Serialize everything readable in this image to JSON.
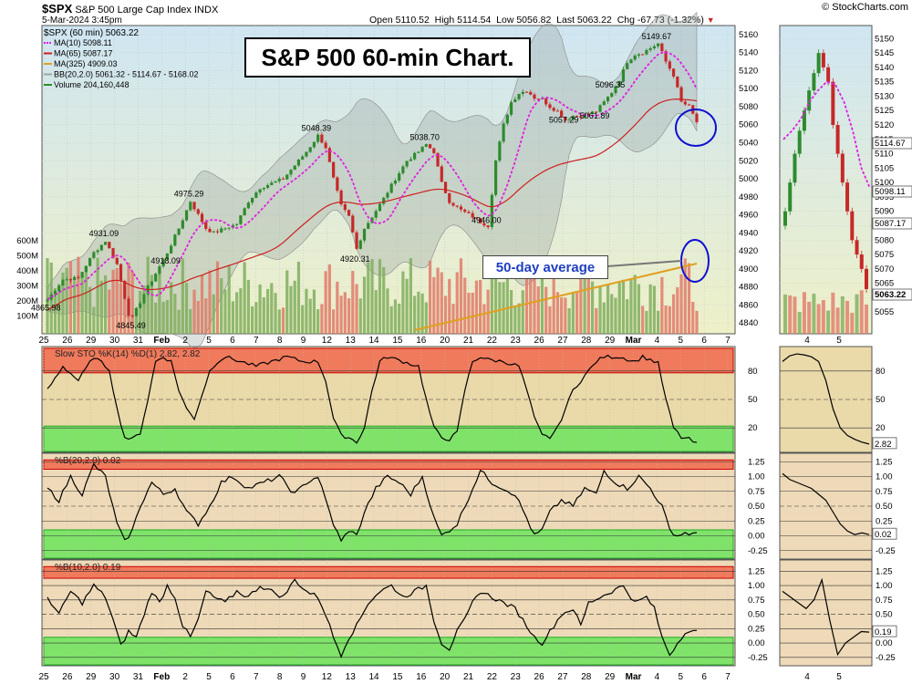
{
  "header": {
    "symbol": "$SPX",
    "name": "S&P 500 Large Cap Index",
    "exchange": "INDX",
    "date": "5-Mar-2024 3:45pm",
    "open": "Open 5110.52",
    "high": "High 5114.54",
    "low": "Low 5056.82",
    "last": "Last 5063.22",
    "chg": "Chg -67.73 (-1.32%)",
    "chg_arrow": "▼",
    "credit": "© StockCharts.com"
  },
  "annotations": {
    "title": "S&P 500 60-min Chart.",
    "ma_label": "50-day average"
  },
  "colors": {
    "bg_top": "#cfe6f2",
    "bg_bottom": "#eef0c8",
    "up_candle": "#2e8b2e",
    "down_candle": "#c62828",
    "ma10": "#e020e0",
    "ma65": "#cc2020",
    "ma325": "#e0a020",
    "band": "#9aa7a4",
    "stoch_panel": "#ead9a9",
    "pctb_panel": "#eedab8",
    "overbought": "#f07a5c",
    "oversold": "#7fe36a",
    "circle": "#1010d0"
  },
  "chart_data": [
    {
      "type": "line",
      "panel": "price",
      "title": "$SPX (60 min) 5063.22",
      "legend": [
        {
          "label": "MA(10) 5098.11",
          "color": "#e020e0"
        },
        {
          "label": "MA(65) 5087.17",
          "color": "#cc2020"
        },
        {
          "label": "MA(325) 4909.03",
          "color": "#e0a020"
        },
        {
          "label": "BB(20,2.0) 5061.32 - 5114.67 - 5168.02",
          "color": "#9aa7a4"
        },
        {
          "label": "Volume 204,160,448",
          "color": "#2e8b2e"
        }
      ],
      "ylim": [
        4832,
        5166
      ],
      "yticks": [
        4840,
        4860,
        4880,
        4900,
        4920,
        4940,
        4960,
        4980,
        5000,
        5020,
        5040,
        5060,
        5080,
        5100,
        5120,
        5140,
        5160
      ],
      "volume_ticks": [
        "600M",
        "500M",
        "400M",
        "300M",
        "200M",
        "100M"
      ],
      "x_labels": [
        "25",
        "26",
        "29",
        "30",
        "31",
        "Feb",
        "2",
        "5",
        "6",
        "7",
        "8",
        "9",
        "12",
        "13",
        "14",
        "15",
        "16",
        "20",
        "21",
        "22",
        "23",
        "26",
        "27",
        "28",
        "29",
        "Mar",
        "4",
        "5",
        "6",
        "7"
      ],
      "price_anchors": [
        [
          0,
          4866
        ],
        [
          4,
          4888
        ],
        [
          8,
          4890
        ],
        [
          12,
          4918
        ],
        [
          15,
          4931
        ],
        [
          18,
          4905
        ],
        [
          21,
          4850
        ],
        [
          22,
          4846
        ],
        [
          25,
          4872
        ],
        [
          28,
          4895
        ],
        [
          31,
          4918
        ],
        [
          34,
          4945
        ],
        [
          37,
          4975
        ],
        [
          39,
          4960
        ],
        [
          41,
          4945
        ],
        [
          43,
          4940
        ],
        [
          46,
          4945
        ],
        [
          49,
          4950
        ],
        [
          52,
          4975
        ],
        [
          55,
          4990
        ],
        [
          58,
          4995
        ],
        [
          61,
          5000
        ],
        [
          64,
          5015
        ],
        [
          67,
          5030
        ],
        [
          70,
          5048
        ],
        [
          72,
          5035
        ],
        [
          74,
          5000
        ],
        [
          76,
          4970
        ],
        [
          78,
          4958
        ],
        [
          80,
          4922
        ],
        [
          82,
          4945
        ],
        [
          84,
          4958
        ],
        [
          87,
          4978
        ],
        [
          90,
          5000
        ],
        [
          93,
          5020
        ],
        [
          96,
          5030
        ],
        [
          98,
          5038
        ],
        [
          100,
          5030
        ],
        [
          102,
          4995
        ],
        [
          104,
          4975
        ],
        [
          107,
          4965
        ],
        [
          110,
          4958
        ],
        [
          112,
          4952
        ],
        [
          114,
          4948
        ],
        [
          116,
          5020
        ],
        [
          118,
          5060
        ],
        [
          120,
          5085
        ],
        [
          122,
          5095
        ],
        [
          124,
          5098
        ],
        [
          126,
          5090
        ],
        [
          128,
          5088
        ],
        [
          130,
          5080
        ],
        [
          132,
          5075
        ],
        [
          134,
          5065
        ],
        [
          136,
          5070
        ],
        [
          138,
          5070
        ],
        [
          140,
          5072
        ],
        [
          142,
          5075
        ],
        [
          144,
          5085
        ],
        [
          146,
          5096
        ],
        [
          148,
          5110
        ],
        [
          150,
          5130
        ],
        [
          152,
          5138
        ],
        [
          154,
          5140
        ],
        [
          156,
          5145
        ],
        [
          158,
          5150
        ],
        [
          160,
          5130
        ],
        [
          162,
          5115
        ],
        [
          164,
          5085
        ],
        [
          166,
          5080
        ],
        [
          168,
          5063
        ]
      ],
      "price_labels": [
        {
          "text": "4931.09",
          "i": 15,
          "v": 4931
        },
        {
          "text": "4865.98",
          "i": 0,
          "v": 4866
        },
        {
          "text": "4845.49",
          "i": 22,
          "v": 4846
        },
        {
          "text": "4918.09",
          "i": 31,
          "v": 4918
        },
        {
          "text": "4975.29",
          "i": 37,
          "v": 4975
        },
        {
          "text": "5048.39",
          "i": 70,
          "v": 5048
        },
        {
          "text": "4920.31",
          "i": 80,
          "v": 4920
        },
        {
          "text": "5038.70",
          "i": 98,
          "v": 5038
        },
        {
          "text": "4946.00",
          "i": 114,
          "v": 4946
        },
        {
          "text": "5096.35",
          "i": 146,
          "v": 5096
        },
        {
          "text": "5057.29",
          "i": 134,
          "v": 5057
        },
        {
          "text": "5061.89",
          "i": 142,
          "v": 5062
        },
        {
          "text": "5149.67",
          "i": 158,
          "v": 5150
        }
      ]
    },
    {
      "type": "line",
      "panel": "zoom-price",
      "ylim": [
        5050,
        5152
      ],
      "yticks": [
        5055,
        5060,
        5065,
        5070,
        5075,
        5080,
        5085,
        5090,
        5095,
        5100,
        5105,
        5110,
        5115,
        5120,
        5125,
        5130,
        5135,
        5140,
        5145,
        5150
      ],
      "x_labels": [
        "4",
        "5"
      ],
      "value_labels": [
        "5114.67",
        "5098.11",
        "5087.17",
        "5063.22"
      ]
    },
    {
      "type": "line",
      "panel": "stochastic",
      "title": "Slow STO %K(14) %D(1) 2.82, 2.82",
      "ylim": [
        0,
        100
      ],
      "yticks": [
        "80",
        "50",
        "20"
      ],
      "last_label": "2.82",
      "anchors": [
        [
          0,
          60
        ],
        [
          4,
          85
        ],
        [
          8,
          70
        ],
        [
          12,
          95
        ],
        [
          16,
          82
        ],
        [
          18,
          40
        ],
        [
          20,
          10
        ],
        [
          22,
          8
        ],
        [
          24,
          15
        ],
        [
          26,
          50
        ],
        [
          28,
          90
        ],
        [
          30,
          95
        ],
        [
          32,
          90
        ],
        [
          34,
          60
        ],
        [
          36,
          40
        ],
        [
          38,
          30
        ],
        [
          40,
          55
        ],
        [
          42,
          80
        ],
        [
          44,
          90
        ],
        [
          46,
          95
        ],
        [
          50,
          90
        ],
        [
          54,
          85
        ],
        [
          58,
          90
        ],
        [
          62,
          95
        ],
        [
          66,
          90
        ],
        [
          70,
          90
        ],
        [
          72,
          70
        ],
        [
          74,
          30
        ],
        [
          76,
          12
        ],
        [
          78,
          10
        ],
        [
          80,
          5
        ],
        [
          82,
          20
        ],
        [
          84,
          60
        ],
        [
          86,
          90
        ],
        [
          88,
          95
        ],
        [
          92,
          90
        ],
        [
          96,
          85
        ],
        [
          98,
          50
        ],
        [
          100,
          20
        ],
        [
          102,
          10
        ],
        [
          104,
          8
        ],
        [
          106,
          15
        ],
        [
          108,
          60
        ],
        [
          110,
          90
        ],
        [
          112,
          95
        ],
        [
          114,
          92
        ],
        [
          118,
          90
        ],
        [
          122,
          85
        ],
        [
          124,
          60
        ],
        [
          126,
          30
        ],
        [
          128,
          12
        ],
        [
          130,
          10
        ],
        [
          132,
          20
        ],
        [
          134,
          40
        ],
        [
          136,
          60
        ],
        [
          138,
          70
        ],
        [
          140,
          80
        ],
        [
          142,
          90
        ],
        [
          144,
          95
        ],
        [
          148,
          95
        ],
        [
          152,
          90
        ],
        [
          154,
          95
        ],
        [
          156,
          92
        ],
        [
          158,
          88
        ],
        [
          160,
          50
        ],
        [
          162,
          20
        ],
        [
          164,
          10
        ],
        [
          166,
          8
        ],
        [
          168,
          3
        ]
      ]
    },
    {
      "type": "line",
      "panel": "percent-b-20",
      "title": "%B(20,2.0) 0.02",
      "ylim": [
        -0.3,
        1.3
      ],
      "yticks": [
        "1.25",
        "1.00",
        "0.75",
        "0.50",
        "0.25",
        "0.00",
        "-0.25"
      ],
      "last_label": "0.02",
      "anchors": [
        [
          0,
          0.8
        ],
        [
          3,
          0.6
        ],
        [
          6,
          1.0
        ],
        [
          9,
          0.7
        ],
        [
          12,
          1.2
        ],
        [
          15,
          1.0
        ],
        [
          18,
          0.2
        ],
        [
          20,
          -0.1
        ],
        [
          22,
          0.1
        ],
        [
          24,
          0.5
        ],
        [
          27,
          0.9
        ],
        [
          30,
          0.7
        ],
        [
          33,
          0.8
        ],
        [
          36,
          0.4
        ],
        [
          39,
          0.2
        ],
        [
          42,
          0.5
        ],
        [
          45,
          0.9
        ],
        [
          48,
          1.0
        ],
        [
          52,
          0.8
        ],
        [
          56,
          0.9
        ],
        [
          60,
          1.0
        ],
        [
          64,
          0.7
        ],
        [
          67,
          0.9
        ],
        [
          70,
          1.0
        ],
        [
          72,
          0.6
        ],
        [
          74,
          0.2
        ],
        [
          76,
          -0.1
        ],
        [
          78,
          0.1
        ],
        [
          80,
          0.0
        ],
        [
          82,
          0.4
        ],
        [
          85,
          0.8
        ],
        [
          88,
          1.0
        ],
        [
          91,
          0.9
        ],
        [
          94,
          0.7
        ],
        [
          97,
          1.0
        ],
        [
          100,
          0.3
        ],
        [
          102,
          0.0
        ],
        [
          104,
          0.1
        ],
        [
          106,
          0.2
        ],
        [
          108,
          0.5
        ],
        [
          110,
          0.8
        ],
        [
          112,
          1.1
        ],
        [
          115,
          0.9
        ],
        [
          118,
          0.8
        ],
        [
          121,
          0.7
        ],
        [
          124,
          0.3
        ],
        [
          126,
          0.0
        ],
        [
          128,
          0.1
        ],
        [
          130,
          0.4
        ],
        [
          133,
          0.6
        ],
        [
          136,
          0.5
        ],
        [
          139,
          0.8
        ],
        [
          142,
          0.7
        ],
        [
          144,
          1.1
        ],
        [
          147,
          0.9
        ],
        [
          150,
          0.8
        ],
        [
          153,
          1.0
        ],
        [
          156,
          0.8
        ],
        [
          159,
          0.5
        ],
        [
          161,
          0.1
        ],
        [
          163,
          0.0
        ],
        [
          165,
          0.05
        ],
        [
          168,
          0.02
        ]
      ]
    },
    {
      "type": "line",
      "panel": "percent-b-10",
      "title": "%B(10,2.0) 0.19",
      "ylim": [
        -0.3,
        1.35
      ],
      "yticks": [
        "1.25",
        "1.00",
        "0.75",
        "0.50",
        "0.25",
        "0.00",
        "-0.25"
      ],
      "last_label": "0.19",
      "anchors": [
        [
          0,
          0.8
        ],
        [
          3,
          0.5
        ],
        [
          6,
          0.9
        ],
        [
          9,
          0.7
        ],
        [
          12,
          1.0
        ],
        [
          15,
          0.8
        ],
        [
          17,
          0.4
        ],
        [
          19,
          -0.05
        ],
        [
          21,
          0.2
        ],
        [
          23,
          0.1
        ],
        [
          25,
          0.5
        ],
        [
          27,
          0.9
        ],
        [
          29,
          0.7
        ],
        [
          31,
          1.0
        ],
        [
          33,
          0.8
        ],
        [
          35,
          0.3
        ],
        [
          37,
          0.1
        ],
        [
          39,
          0.4
        ],
        [
          41,
          0.9
        ],
        [
          43,
          0.8
        ],
        [
          46,
          0.7
        ],
        [
          49,
          0.9
        ],
        [
          52,
          0.8
        ],
        [
          55,
          1.0
        ],
        [
          58,
          0.9
        ],
        [
          61,
          0.8
        ],
        [
          64,
          1.1
        ],
        [
          67,
          0.9
        ],
        [
          70,
          0.8
        ],
        [
          72,
          0.5
        ],
        [
          74,
          0.1
        ],
        [
          76,
          -0.2
        ],
        [
          78,
          0.1
        ],
        [
          80,
          0.3
        ],
        [
          83,
          0.7
        ],
        [
          86,
          0.9
        ],
        [
          89,
          1.0
        ],
        [
          92,
          0.8
        ],
        [
          95,
          0.9
        ],
        [
          98,
          1.0
        ],
        [
          100,
          0.4
        ],
        [
          102,
          0.0
        ],
        [
          104,
          -0.1
        ],
        [
          106,
          0.2
        ],
        [
          108,
          0.4
        ],
        [
          110,
          0.7
        ],
        [
          112,
          0.9
        ],
        [
          115,
          0.8
        ],
        [
          118,
          0.7
        ],
        [
          121,
          0.6
        ],
        [
          124,
          0.3
        ],
        [
          126,
          0.1
        ],
        [
          128,
          0.0
        ],
        [
          130,
          0.2
        ],
        [
          133,
          0.5
        ],
        [
          136,
          0.6
        ],
        [
          138,
          0.3
        ],
        [
          140,
          0.7
        ],
        [
          143,
          0.8
        ],
        [
          146,
          0.9
        ],
        [
          149,
          1.0
        ],
        [
          152,
          0.7
        ],
        [
          155,
          0.8
        ],
        [
          157,
          0.6
        ],
        [
          159,
          0.1
        ],
        [
          161,
          -0.2
        ],
        [
          163,
          0.0
        ],
        [
          165,
          0.2
        ],
        [
          168,
          0.19
        ]
      ]
    }
  ]
}
